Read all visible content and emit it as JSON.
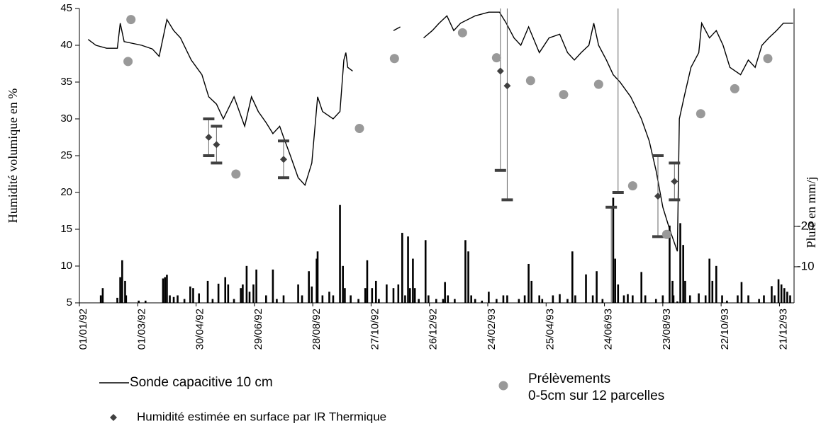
{
  "chart_data": {
    "type": "combo",
    "y_label": "Humidité volumique en %",
    "y2_label": "Pluie en mm/j",
    "xlim": [
      0,
      735
    ],
    "xticks": [
      {
        "value": 0,
        "label": "01/01/92"
      },
      {
        "value": 60,
        "label": "01/03/92"
      },
      {
        "value": 120,
        "label": "30/04/92"
      },
      {
        "value": 180,
        "label": "29/06/92"
      },
      {
        "value": 240,
        "label": "28/08/92"
      },
      {
        "value": 300,
        "label": "27/10/92"
      },
      {
        "value": 360,
        "label": "26/12/92"
      },
      {
        "value": 420,
        "label": "24/02/93"
      },
      {
        "value": 480,
        "label": "25/04/93"
      },
      {
        "value": 540,
        "label": "24/06/93"
      },
      {
        "value": 600,
        "label": "23/08/93"
      },
      {
        "value": 660,
        "label": "22/10/93"
      },
      {
        "value": 720,
        "label": "21/12/93"
      }
    ],
    "ylim": [
      5,
      45
    ],
    "yticks": [
      5,
      10,
      15,
      20,
      25,
      30,
      35,
      40,
      45
    ],
    "y2lim": [
      -1.05,
      -74
    ],
    "y2ticks": [
      -10,
      -20
    ],
    "grid": false,
    "series": [
      {
        "name": "Sonde capacitive 10 cm",
        "type": "line",
        "color": "#000000",
        "x": [
          9,
          17,
          28,
          39,
          42,
          46,
          64,
          75,
          82,
          90,
          97,
          104,
          115,
          126,
          133,
          141,
          148,
          159,
          170,
          177,
          184,
          192,
          199,
          206,
          210,
          217,
          225,
          232,
          239,
          245,
          250,
          261,
          268,
          272,
          274,
          276,
          281,
          300,
          323,
          330,
          340,
          354,
          363,
          370,
          378,
          385,
          392,
          407,
          421,
          432,
          439,
          447,
          454,
          462,
          473,
          483,
          494,
          502,
          509,
          516,
          524,
          529,
          534,
          542,
          549,
          556,
          567,
          578,
          586,
          593,
          600,
          607,
          615,
          617,
          622,
          629,
          637,
          640,
          648,
          655,
          662,
          669,
          680,
          688,
          695,
          702,
          709,
          717,
          724,
          734
        ],
        "values": [
          40.8,
          40,
          39.6,
          39.6,
          43,
          40.5,
          40,
          39.5,
          38.5,
          43.5,
          42,
          41,
          38,
          36,
          33,
          32,
          30,
          33,
          29,
          33,
          31,
          29.5,
          28,
          29,
          27.5,
          25,
          22,
          21,
          24,
          33,
          31,
          30,
          31,
          38,
          39,
          37,
          36.5,
          null,
          42,
          42.5,
          null,
          41,
          42,
          43,
          44,
          42,
          43,
          44,
          44.5,
          44.5,
          43,
          41,
          40,
          42.5,
          39,
          41,
          41.5,
          39,
          38,
          39,
          40,
          43,
          40,
          38,
          36,
          35,
          33,
          30,
          27,
          23,
          18,
          15,
          12,
          30,
          33,
          37,
          39,
          43,
          41,
          42,
          40,
          37,
          36,
          38,
          37,
          40,
          41,
          42,
          43,
          43
        ]
      },
      {
        "name": "Prélèvements\n0-5cm sur 12 parcelles",
        "type": "scatter",
        "color": "#999999",
        "x": [
          53,
          50,
          161,
          288,
          324,
          394,
          429,
          464,
          498,
          534,
          569,
          604,
          639,
          674,
          708
        ],
        "values": [
          43.5,
          37.8,
          22.5,
          28.7,
          38.2,
          41.7,
          38.3,
          35.2,
          33.3,
          34.7,
          20.9,
          14.3,
          30.7,
          34.1,
          38.2
        ]
      },
      {
        "name": "Humidité estimée en surface par IR Thermique",
        "type": "errorbar",
        "color": "#404040",
        "x": [
          133,
          141,
          210,
          433,
          440,
          547,
          554,
          595,
          612
        ],
        "values": [
          27.5,
          26.5,
          24.5,
          36.5,
          34.5,
          null,
          null,
          19.5,
          21.5
        ],
        "low": [
          25,
          24,
          22,
          23,
          19,
          5,
          20,
          14,
          19
        ],
        "high": [
          30,
          29,
          27,
          45,
          45,
          18,
          45,
          25,
          24
        ]
      },
      {
        "type": "bar",
        "axis": "y2",
        "color": "#000000",
        "x": [
          22,
          24,
          39,
          42,
          44,
          47,
          48,
          61,
          68,
          86,
          88,
          90,
          93,
          97,
          101,
          108,
          114,
          117,
          123,
          132,
          137,
          143,
          150,
          153,
          159,
          166,
          168,
          172,
          175,
          179,
          182,
          192,
          199,
          203,
          210,
          225,
          229,
          236,
          239,
          244,
          245,
          250,
          257,
          261,
          268,
          271,
          273,
          279,
          287,
          294,
          296,
          301,
          305,
          308,
          316,
          323,
          328,
          332,
          335,
          338,
          340,
          343,
          345,
          349,
          356,
          359,
          367,
          374,
          376,
          379,
          386,
          397,
          400,
          403,
          407,
          414,
          421,
          429,
          436,
          440,
          452,
          458,
          462,
          465,
          473,
          476,
          487,
          494,
          502,
          507,
          510,
          521,
          528,
          532,
          538,
          549,
          551,
          554,
          560,
          564,
          569,
          578,
          582,
          593,
          600,
          607,
          610,
          611,
          615,
          618,
          621,
          623,
          628,
          637,
          644,
          648,
          651,
          655,
          661,
          666,
          677,
          681,
          688,
          699,
          704,
          712,
          715,
          719,
          722,
          725,
          728,
          731
        ],
        "values": [
          -2.9,
          -4.7,
          -2.3,
          -7.4,
          -11.6,
          -6.5,
          -2.9,
          -1.6,
          -1.6,
          -7.1,
          -7.4,
          -8,
          -2.9,
          -2.5,
          -2.9,
          -2,
          -5.1,
          -4.7,
          -3.4,
          -6.5,
          -2,
          -5.8,
          -7.4,
          -5.6,
          -2,
          -4.7,
          -5.6,
          -10.2,
          -3.8,
          -5.6,
          -9.3,
          -2.9,
          -9.3,
          -2,
          -2.9,
          -5.6,
          -2.9,
          -8.9,
          -5.1,
          -12,
          -13.8,
          -2.9,
          -3.8,
          -2.9,
          -25.3,
          -10.2,
          -4.7,
          -2.9,
          -2,
          -4.7,
          -11.6,
          -4.7,
          -6.5,
          -2,
          -5.6,
          -4.7,
          -5.6,
          -18.4,
          -2.9,
          -17.5,
          -4.7,
          -12,
          -4.7,
          -2,
          -16.6,
          -2.9,
          -2,
          -2,
          -6.2,
          -2.9,
          -2,
          -16.6,
          -13.8,
          -2.9,
          -2,
          -1.6,
          -3.8,
          -2,
          -2.9,
          -2.9,
          -2,
          -2.9,
          -10.7,
          -6.5,
          -2.9,
          -2,
          -2.9,
          -3.2,
          -2,
          -13.8,
          -2.9,
          -8.1,
          -2.9,
          -8.9,
          -2,
          -27.1,
          -12,
          -5.6,
          -2.9,
          -3.2,
          -2.9,
          -8.7,
          -2.9,
          -2,
          -2.9,
          -20.2,
          -6.5,
          -2.9,
          -1.4,
          -20.8,
          -15.4,
          -6.5,
          -2.9,
          -3.4,
          -2.9,
          -12,
          -6.5,
          -10.2,
          -2.9,
          -1.6,
          -2.9,
          -6.2,
          -2.9,
          -2,
          -2.9,
          -5.2,
          -2.9,
          -6.9,
          -5.6,
          -4.7,
          -3.8,
          -2.9
        ]
      }
    ]
  }
}
